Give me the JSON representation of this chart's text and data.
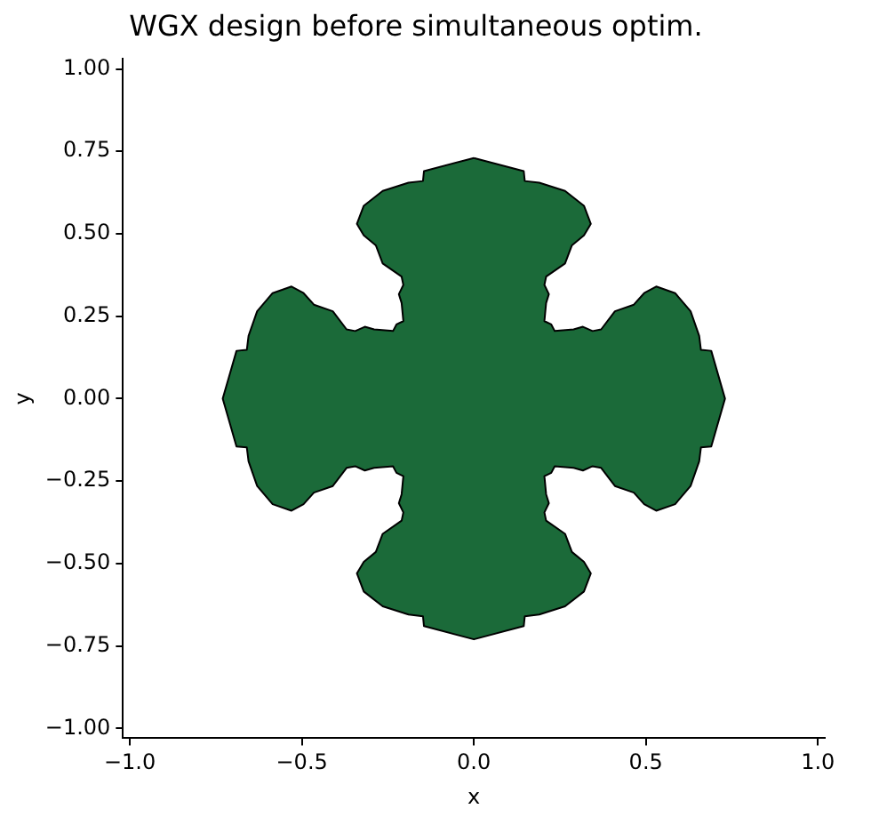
{
  "chart_data": {
    "type": "area",
    "title": "WGX design before simultaneous optim.",
    "xlabel": "x",
    "ylabel": "y",
    "xlim": [
      -1.02,
      1.02
    ],
    "ylim": [
      -1.03,
      1.03
    ],
    "xticks": [
      {
        "value": -1,
        "label": "−1.0"
      },
      {
        "value": -0.5,
        "label": "−0.5"
      },
      {
        "value": 0,
        "label": "0.0"
      },
      {
        "value": 0.5,
        "label": "0.5"
      },
      {
        "value": 1,
        "label": "1.0"
      }
    ],
    "yticks": [
      {
        "value": -1,
        "label": "−1.00"
      },
      {
        "value": -0.75,
        "label": "−0.75"
      },
      {
        "value": -0.5,
        "label": "−0.50"
      },
      {
        "value": -0.25,
        "label": "−0.25"
      },
      {
        "value": 0,
        "label": "0.00"
      },
      {
        "value": 0.25,
        "label": "0.25"
      },
      {
        "value": 0.5,
        "label": "0.50"
      },
      {
        "value": 0.75,
        "label": "0.75"
      },
      {
        "value": 1,
        "label": "1.00"
      }
    ],
    "grid": false,
    "legend": false,
    "series": [
      {
        "color": "#1b6a39",
        "x": [
          0,
          0.145,
          0.148,
          0.19,
          0.265,
          0.32,
          0.34,
          0.32,
          0.285,
          0.265,
          0.21,
          0.205,
          0.218,
          0.21,
          0.205,
          0.225,
          0.235,
          0.29,
          0.317,
          0.345,
          0.37,
          0.41,
          0.465,
          0.495,
          0.53,
          0.585,
          0.63,
          0.655,
          0.66,
          0.69,
          0.73,
          0.69,
          0.66,
          0.655,
          0.63,
          0.585,
          0.53,
          0.495,
          0.465,
          0.41,
          0.37,
          0.345,
          0.317,
          0.29,
          0.235,
          0.225,
          0.205,
          0.21,
          0.218,
          0.205,
          0.21,
          0.265,
          0.285,
          0.32,
          0.34,
          0.32,
          0.265,
          0.19,
          0.148,
          0.145,
          0,
          -0.145,
          -0.148,
          -0.19,
          -0.265,
          -0.32,
          -0.34,
          -0.32,
          -0.285,
          -0.265,
          -0.21,
          -0.205,
          -0.218,
          -0.21,
          -0.205,
          -0.225,
          -0.235,
          -0.29,
          -0.317,
          -0.345,
          -0.37,
          -0.41,
          -0.465,
          -0.495,
          -0.53,
          -0.585,
          -0.63,
          -0.655,
          -0.66,
          -0.69,
          -0.73,
          -0.69,
          -0.66,
          -0.655,
          -0.63,
          -0.585,
          -0.53,
          -0.495,
          -0.465,
          -0.41,
          -0.37,
          -0.345,
          -0.317,
          -0.29,
          -0.235,
          -0.225,
          -0.205,
          -0.21,
          -0.218,
          -0.205,
          -0.21,
          -0.265,
          -0.285,
          -0.32,
          -0.34,
          -0.32,
          -0.265,
          -0.19,
          -0.148,
          -0.145,
          0
        ],
        "values": [
          0.73,
          0.69,
          0.66,
          0.655,
          0.63,
          0.585,
          0.53,
          0.495,
          0.465,
          0.41,
          0.37,
          0.345,
          0.317,
          0.29,
          0.235,
          0.225,
          0.205,
          0.21,
          0.218,
          0.205,
          0.21,
          0.265,
          0.285,
          0.32,
          0.34,
          0.32,
          0.265,
          0.19,
          0.148,
          0.145,
          0,
          -0.145,
          -0.148,
          -0.19,
          -0.265,
          -0.32,
          -0.34,
          -0.32,
          -0.285,
          -0.265,
          -0.21,
          -0.205,
          -0.218,
          -0.21,
          -0.205,
          -0.225,
          -0.235,
          -0.29,
          -0.317,
          -0.345,
          -0.37,
          -0.41,
          -0.465,
          -0.495,
          -0.53,
          -0.585,
          -0.63,
          -0.655,
          -0.66,
          -0.69,
          -0.73,
          -0.69,
          -0.66,
          -0.655,
          -0.63,
          -0.585,
          -0.53,
          -0.495,
          -0.465,
          -0.41,
          -0.37,
          -0.345,
          -0.317,
          -0.29,
          -0.235,
          -0.225,
          -0.205,
          -0.21,
          -0.218,
          -0.205,
          -0.21,
          -0.265,
          -0.285,
          -0.32,
          -0.34,
          -0.32,
          -0.265,
          -0.19,
          -0.148,
          -0.145,
          0,
          0.145,
          0.148,
          0.19,
          0.265,
          0.32,
          0.34,
          0.32,
          0.285,
          0.265,
          0.21,
          0.205,
          0.218,
          0.21,
          0.205,
          0.225,
          0.235,
          0.29,
          0.317,
          0.345,
          0.37,
          0.41,
          0.465,
          0.495,
          0.53,
          0.585,
          0.63,
          0.655,
          0.66,
          0.69,
          0.73
        ]
      }
    ]
  }
}
